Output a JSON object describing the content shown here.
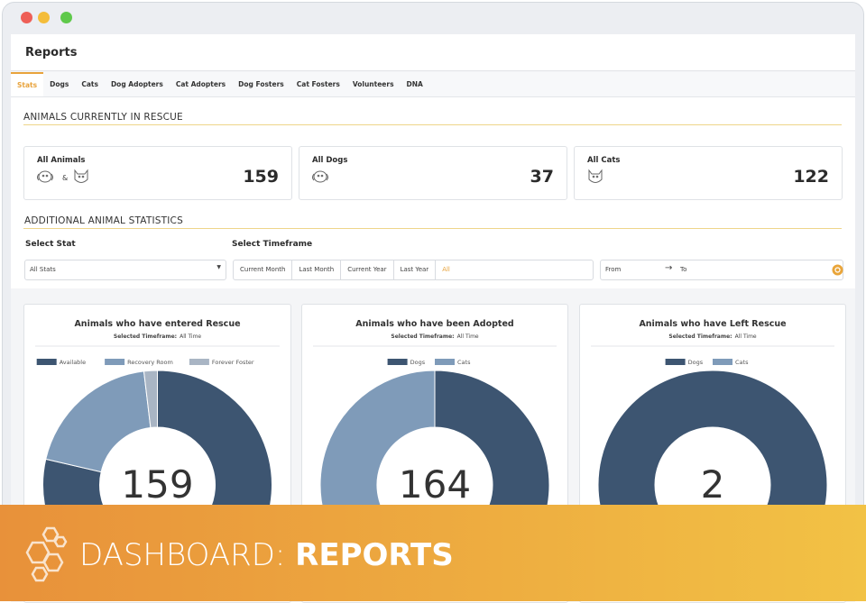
{
  "window": {
    "title": "Reports"
  },
  "tabs": [
    "Stats",
    "Dogs",
    "Cats",
    "Dog Adopters",
    "Cat Adopters",
    "Dog Fosters",
    "Cat Fosters",
    "Volunteers",
    "DNA"
  ],
  "active_tab": 0,
  "section_current": "ANIMALS CURRENTLY IN RESCUE",
  "summary_cards": [
    {
      "label": "All Animals",
      "value": 159
    },
    {
      "label": "All Dogs",
      "value": 37
    },
    {
      "label": "All Cats",
      "value": 122
    }
  ],
  "icon_separator": "&",
  "section_additional": "ADDITIONAL ANIMAL STATISTICS",
  "filters": {
    "stat_label": "Select Stat",
    "stat_value": "All Stats",
    "timeframe_label": "Select Timeframe",
    "timeframe_options": [
      "Current Month",
      "Last Month",
      "Current Year",
      "Last Year",
      "All"
    ],
    "active_timeframe": 4,
    "from": "From",
    "to": "To"
  },
  "chart_data": [
    {
      "type": "donut",
      "title": "Animals who have entered Rescue",
      "subtitle_label": "Selected Timeframe:",
      "subtitle_value": "All Time",
      "categories": [
        "Available",
        "Recovery Room",
        "Forever Foster"
      ],
      "values": [
        125,
        31,
        3
      ],
      "colors": [
        "#3d5571",
        "#7f9bb9",
        "#a9b5c4"
      ],
      "total": 159
    },
    {
      "type": "donut",
      "title": "Animals who have been Adopted",
      "subtitle_label": "Selected Timeframe:",
      "subtitle_value": "All Time",
      "categories": [
        "Dogs",
        "Cats"
      ],
      "values": [
        100,
        64
      ],
      "colors": [
        "#3d5571",
        "#7f9bb9"
      ],
      "total": 164
    },
    {
      "type": "donut",
      "title": "Animals who have Left Rescue",
      "subtitle_label": "Selected Timeframe:",
      "subtitle_value": "All Time",
      "categories": [
        "Dogs",
        "Cats"
      ],
      "values": [
        2,
        0
      ],
      "colors": [
        "#3d5571",
        "#7f9bb9"
      ],
      "total": 2
    }
  ],
  "banner": {
    "prefix": "DASHBOARD:",
    "title": "REPORTS"
  }
}
